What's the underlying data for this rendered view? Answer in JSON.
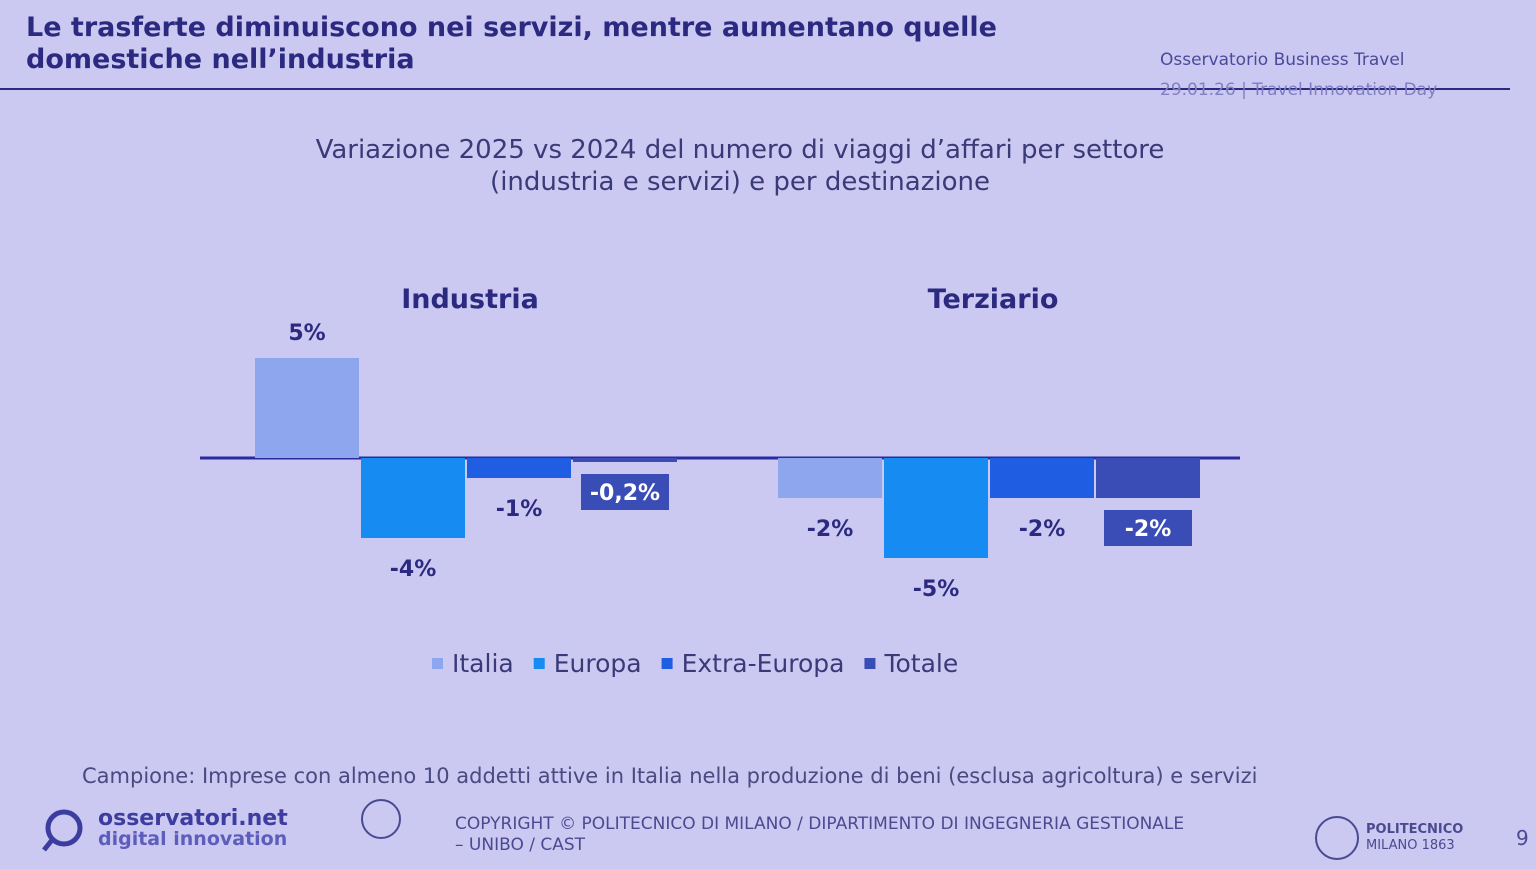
{
  "header": {
    "title": "Le trasferte diminuiscono nei servizi, mentre aumentano quelle domestiche nell’industria",
    "source": "Osservatorio Business Travel",
    "event": "29.01.26 | Travel Innovation Day"
  },
  "chart_data": {
    "type": "bar",
    "title": "Variazione 2025 vs 2024 del numero di viaggi d’affari per settore (industria e servizi) e per destinazione",
    "categories": [
      "Industria",
      "Terziario"
    ],
    "series": [
      {
        "name": "Italia",
        "color": "#8ea6ee",
        "values": [
          5,
          -2
        ],
        "value_labels": [
          "5%",
          "-2%"
        ]
      },
      {
        "name": "Europa",
        "color": "#168cf2",
        "values": [
          -4,
          -5
        ],
        "value_labels": [
          "-4%",
          "-5%"
        ]
      },
      {
        "name": "Extra-Europa",
        "color": "#1f5ee2",
        "values": [
          -1,
          -2
        ],
        "value_labels": [
          "-1%",
          "-2%"
        ]
      },
      {
        "name": "Totale",
        "color": "#3a4db6",
        "values": [
          -0.2,
          -2
        ],
        "value_labels": [
          "-0,2%",
          "-2%"
        ]
      }
    ],
    "note": "Campione: Imprese con almeno 10 addetti attive in Italia nella produzione di beni (esclusa agricoltura) e servizi"
  },
  "footer": {
    "brand": "osservatori.net",
    "tagline": "digital innovation",
    "copyright": "COPYRIGHT © POLITECNICO DI MILANO / DIPARTIMENTO DI INGEGNERIA GESTIONALE – UNIBO / CAST",
    "university": "POLITECNICO",
    "university_sub": "MILANO 1863",
    "page": "9"
  }
}
